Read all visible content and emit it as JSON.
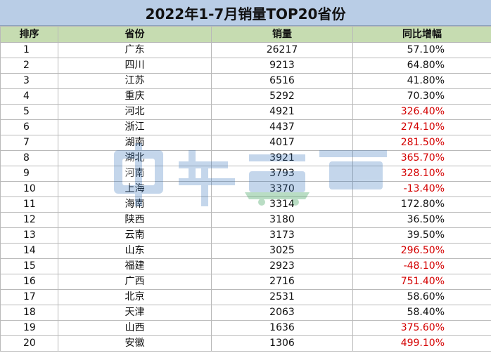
{
  "title": "2022年1-7月销量TOP20省份",
  "headers": [
    "排序",
    "省份",
    "销量",
    "同比增幅"
  ],
  "rows": [
    {
      "rank": "1",
      "province": "广东",
      "sales": "26217",
      "yoy": "57.10%",
      "highlight": false
    },
    {
      "rank": "2",
      "province": "四川",
      "sales": "9213",
      "yoy": "64.80%",
      "highlight": false
    },
    {
      "rank": "3",
      "province": "江苏",
      "sales": "6516",
      "yoy": "41.80%",
      "highlight": false
    },
    {
      "rank": "4",
      "province": "重庆",
      "sales": "5292",
      "yoy": "70.30%",
      "highlight": false
    },
    {
      "rank": "5",
      "province": "河北",
      "sales": "4921",
      "yoy": "326.40%",
      "highlight": true
    },
    {
      "rank": "6",
      "province": "浙江",
      "sales": "4437",
      "yoy": "274.10%",
      "highlight": true
    },
    {
      "rank": "7",
      "province": "湖南",
      "sales": "4017",
      "yoy": "281.50%",
      "highlight": true
    },
    {
      "rank": "8",
      "province": "湖北",
      "sales": "3921",
      "yoy": "365.70%",
      "highlight": true
    },
    {
      "rank": "9",
      "province": "河南",
      "sales": "3793",
      "yoy": "328.10%",
      "highlight": true
    },
    {
      "rank": "10",
      "province": "上海",
      "sales": "3370",
      "yoy": "-13.40%",
      "highlight": true
    },
    {
      "rank": "11",
      "province": "海南",
      "sales": "3314",
      "yoy": "172.80%",
      "highlight": false
    },
    {
      "rank": "12",
      "province": "陕西",
      "sales": "3180",
      "yoy": "36.50%",
      "highlight": false
    },
    {
      "rank": "13",
      "province": "云南",
      "sales": "3173",
      "yoy": "39.50%",
      "highlight": false
    },
    {
      "rank": "14",
      "province": "山东",
      "sales": "3025",
      "yoy": "296.50%",
      "highlight": true
    },
    {
      "rank": "15",
      "province": "福建",
      "sales": "2923",
      "yoy": "-48.10%",
      "highlight": true
    },
    {
      "rank": "16",
      "province": "广西",
      "sales": "2716",
      "yoy": "751.40%",
      "highlight": true
    },
    {
      "rank": "17",
      "province": "北京",
      "sales": "2531",
      "yoy": "58.60%",
      "highlight": false
    },
    {
      "rank": "18",
      "province": "天津",
      "sales": "2063",
      "yoy": "58.40%",
      "highlight": false
    },
    {
      "rank": "19",
      "province": "山西",
      "sales": "1636",
      "yoy": "375.60%",
      "highlight": true
    },
    {
      "rank": "20",
      "province": "安徽",
      "sales": "1306",
      "yoy": "499.10%",
      "highlight": true
    }
  ],
  "watermark": {
    "text": "电车资源",
    "color": "#2f6fb8",
    "accent": "#3aa05a"
  },
  "colors": {
    "title_bg": "#b9cde6",
    "header_bg": "#c6dcb1",
    "negative_or_highlight": "#d40000"
  }
}
